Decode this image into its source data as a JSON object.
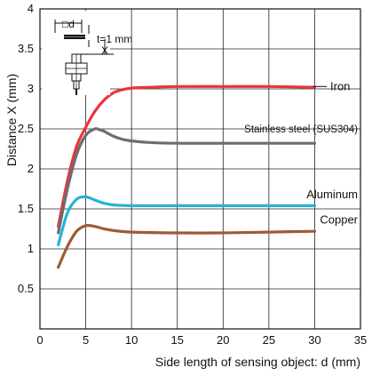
{
  "chart_data": {
    "type": "line",
    "title": "",
    "xlabel": "Side length of sensing object: d (mm)",
    "ylabel": "Distance X (mm)",
    "xlim": [
      0,
      35
    ],
    "ylim": [
      0,
      4
    ],
    "x_ticks": [
      "0",
      "5",
      "10",
      "15",
      "20",
      "25",
      "30",
      "35"
    ],
    "y_ticks": [
      "0.5",
      "1",
      "1.5",
      "2",
      "2.5",
      "3",
      "3.5",
      "4"
    ],
    "grid": true,
    "legend": "inline-labels",
    "series": [
      {
        "name": "Iron",
        "color": "#e8363c",
        "x": [
          2,
          3,
          4,
          5,
          6,
          7,
          8,
          9,
          10,
          12,
          15,
          20,
          25,
          30
        ],
        "y": [
          1.28,
          1.85,
          2.28,
          2.52,
          2.72,
          2.86,
          2.95,
          2.99,
          3.01,
          3.02,
          3.03,
          3.03,
          3.03,
          3.02
        ]
      },
      {
        "name": "Stainless steel (SUS304)",
        "color": "#6d6d6d",
        "x": [
          2,
          3,
          4,
          5,
          6,
          6.5,
          7,
          8,
          9,
          10,
          12,
          15,
          20,
          25,
          30
        ],
        "y": [
          1.2,
          1.75,
          2.18,
          2.42,
          2.5,
          2.49,
          2.47,
          2.41,
          2.37,
          2.35,
          2.33,
          2.32,
          2.32,
          2.32,
          2.32
        ]
      },
      {
        "name": "Aluminum",
        "color": "#26b3d3",
        "x": [
          2,
          3,
          4,
          5,
          6,
          7,
          8,
          10,
          15,
          20,
          25,
          30
        ],
        "y": [
          1.05,
          1.45,
          1.62,
          1.65,
          1.61,
          1.57,
          1.55,
          1.54,
          1.54,
          1.54,
          1.54,
          1.54
        ]
      },
      {
        "name": "Copper",
        "color": "#9e5a35",
        "x": [
          2,
          3,
          4,
          5,
          6,
          7,
          8,
          10,
          15,
          20,
          25,
          30
        ],
        "y": [
          0.77,
          1.03,
          1.22,
          1.29,
          1.28,
          1.25,
          1.23,
          1.21,
          1.2,
          1.2,
          1.21,
          1.22
        ]
      }
    ],
    "inset": {
      "d_label": "□d",
      "t_label": "t=1 mm",
      "x_label": "X"
    }
  }
}
